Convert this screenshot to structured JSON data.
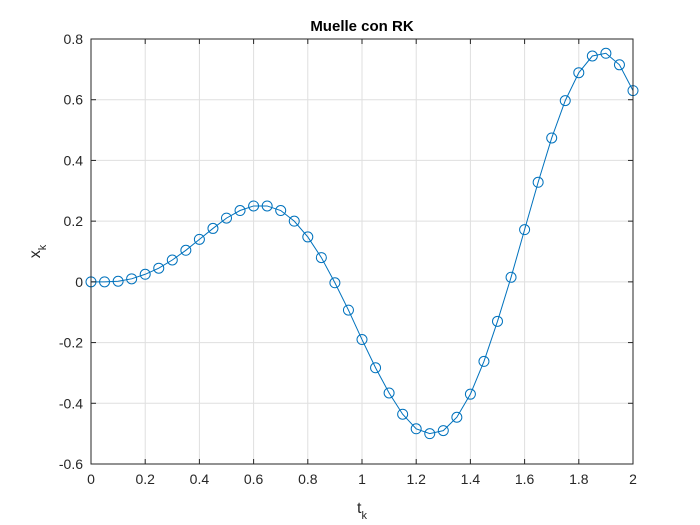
{
  "chart_data": {
    "type": "line",
    "title": "Muelle con RK",
    "xlabel_main": "t",
    "xlabel_sub": "k",
    "ylabel_main": "x",
    "ylabel_sub": "k",
    "xlim": [
      0,
      2
    ],
    "ylim": [
      -0.6,
      0.8
    ],
    "grid": true,
    "marker": "circle",
    "x_ticks": [
      0,
      0.2,
      0.4,
      0.6,
      0.8,
      1,
      1.2,
      1.4,
      1.6,
      1.8,
      2
    ],
    "x_tick_labels": [
      "0",
      "0.2",
      "0.4",
      "0.6",
      "0.8",
      "1",
      "1.2",
      "1.4",
      "1.6",
      "1.8",
      "2"
    ],
    "y_ticks": [
      -0.6,
      -0.4,
      -0.2,
      0,
      0.2,
      0.4,
      0.6,
      0.8
    ],
    "y_tick_labels": [
      "-0.6",
      "-0.4",
      "-0.2",
      "0",
      "0.2",
      "0.4",
      "0.6",
      "0.8"
    ],
    "series": [
      {
        "color": "#0072BD",
        "x": [
          0,
          0.05,
          0.1,
          0.15,
          0.2,
          0.25,
          0.3,
          0.35,
          0.4,
          0.45,
          0.5,
          0.55,
          0.6,
          0.65,
          0.7,
          0.75,
          0.8,
          0.85,
          0.9,
          0.95,
          1,
          1.05,
          1.1,
          1.15,
          1.2,
          1.25,
          1.3,
          1.35,
          1.4,
          1.45,
          1.5,
          1.55,
          1.6,
          1.65,
          1.7,
          1.75,
          1.8,
          1.85,
          1.9,
          1.95,
          2
        ],
        "y": [
          0,
          0,
          0.002,
          0.01,
          0.025,
          0.045,
          0.072,
          0.104,
          0.14,
          0.176,
          0.21,
          0.235,
          0.25,
          0.25,
          0.235,
          0.2,
          0.148,
          0.08,
          -0.003,
          -0.093,
          -0.19,
          -0.283,
          -0.366,
          -0.436,
          -0.484,
          -0.5,
          -0.49,
          -0.446,
          -0.37,
          -0.262,
          -0.13,
          0.015,
          0.172,
          0.328,
          0.474,
          0.597,
          0.689,
          0.744,
          0.753,
          0.715,
          0.63
        ]
      }
    ]
  }
}
